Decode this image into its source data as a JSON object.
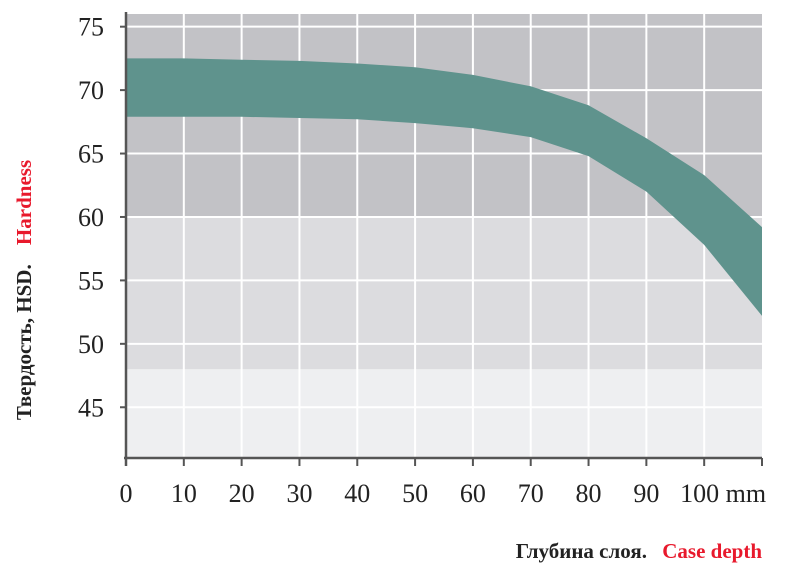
{
  "chart_data": {
    "type": "area",
    "title": "",
    "ylabel": {
      "ru": "Твердость, HSD.",
      "en": "Hardness"
    },
    "xlabel": {
      "ru": "Глубина слоя.",
      "en": "Case depth"
    },
    "x_unit": "mm",
    "xlim": [
      0,
      110
    ],
    "ylim": [
      41,
      76
    ],
    "x_ticks": [
      0,
      10,
      20,
      30,
      40,
      50,
      60,
      70,
      80,
      90,
      100
    ],
    "y_ticks": [
      45,
      50,
      55,
      60,
      65,
      70,
      75
    ],
    "grid": true,
    "background_bands": [
      {
        "from": 41,
        "to": 48,
        "color": "#eeeff1"
      },
      {
        "from": 48,
        "to": 60,
        "color": "#dcdcdf"
      },
      {
        "from": 60,
        "to": 76,
        "color": "#c2c2c6"
      },
      {
        "from": 60,
        "to": 76,
        "x_from": 0,
        "x_to": 10,
        "color": "#b8b8bd",
        "note_only": true
      }
    ],
    "band": {
      "color": "#5f938d",
      "x": [
        0,
        10,
        20,
        30,
        40,
        50,
        60,
        70,
        80,
        90,
        100,
        110
      ],
      "upper": [
        72.5,
        72.5,
        72.4,
        72.3,
        72.1,
        71.8,
        71.2,
        70.3,
        68.8,
        66.2,
        63.3,
        59.2
      ],
      "lower": [
        67.9,
        67.9,
        67.9,
        67.8,
        67.7,
        67.4,
        67.0,
        66.3,
        64.8,
        62.0,
        57.8,
        52.2
      ]
    },
    "colors": {
      "axis": "#555555",
      "grid": "#ffffff",
      "label_ru": "#222222",
      "label_en": "#e8192c"
    }
  }
}
